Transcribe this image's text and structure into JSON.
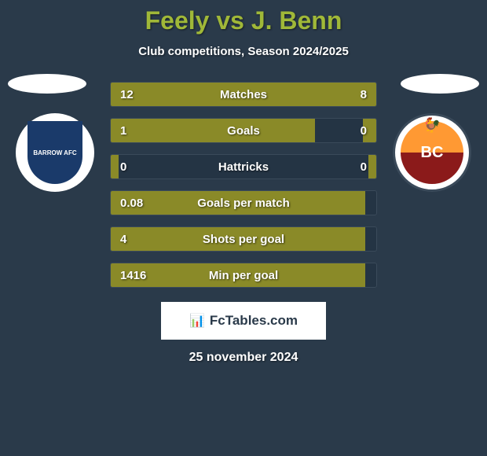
{
  "title": "Feely vs J. Benn",
  "subtitle": "Club competitions, Season 2024/2025",
  "date": "25 november 2024",
  "fctables_label": "FcTables.com",
  "colors": {
    "background": "#2a3a4a",
    "title_color": "#a0b838",
    "bar_fill": "#8a8a28",
    "bar_background": "#243444",
    "bar_border": "#3a4a5a",
    "text_color": "#ffffff"
  },
  "player_left": {
    "name": "Feely",
    "club": "BARROW AFC"
  },
  "player_right": {
    "name": "J. Benn",
    "club": "BC"
  },
  "stats": [
    {
      "label": "Matches",
      "left_value": "12",
      "right_value": "8",
      "left_fill_pct": 60,
      "right_fill_pct": 40
    },
    {
      "label": "Goals",
      "left_value": "1",
      "right_value": "0",
      "left_fill_pct": 77,
      "right_fill_pct": 5
    },
    {
      "label": "Hattricks",
      "left_value": "0",
      "right_value": "0",
      "left_fill_pct": 3,
      "right_fill_pct": 3
    },
    {
      "label": "Goals per match",
      "left_value": "0.08",
      "right_value": "",
      "left_fill_pct": 96,
      "right_fill_pct": 0
    },
    {
      "label": "Shots per goal",
      "left_value": "4",
      "right_value": "",
      "left_fill_pct": 96,
      "right_fill_pct": 0
    },
    {
      "label": "Min per goal",
      "left_value": "1416",
      "right_value": "",
      "left_fill_pct": 96,
      "right_fill_pct": 0
    }
  ]
}
